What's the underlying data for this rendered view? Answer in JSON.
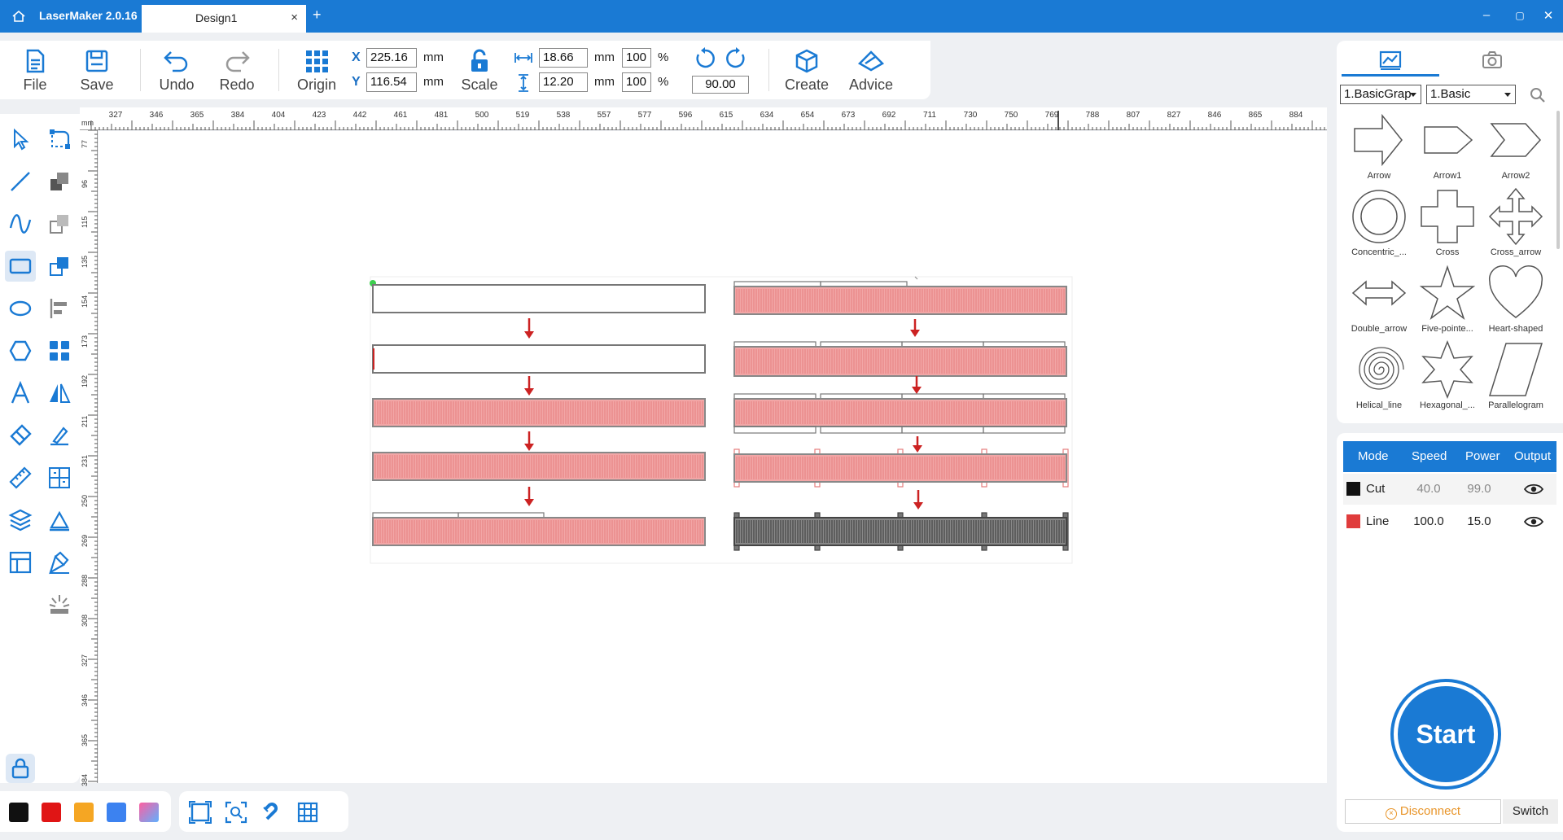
{
  "titlebar": {
    "app_title": "LaserMaker 2.0.16",
    "tab_title": "Design1",
    "tab_close": "×",
    "tab_add": "+",
    "minimize": "–",
    "maximize": "▢",
    "close": "✕"
  },
  "toolbar": {
    "file_label": "File",
    "save_label": "Save",
    "undo_label": "Undo",
    "redo_label": "Redo",
    "origin_label": "Origin",
    "x_label": "X",
    "y_label": "Y",
    "x_value": "225.16",
    "y_value": "116.54",
    "unit_mm": "mm",
    "scale_label": "Scale",
    "width_value": "18.66",
    "height_value": "12.20",
    "width_percent": "100",
    "height_percent": "100",
    "percent_sign": "%",
    "rotation_value": "90.00",
    "create_label": "Create",
    "advice_label": "Advice"
  },
  "ruler": {
    "unit": "mm",
    "top_ticks": [
      "327",
      "346",
      "365",
      "384",
      "404",
      "423",
      "442",
      "461",
      "481",
      "500",
      "519",
      "538",
      "557",
      "577",
      "596",
      "615",
      "634",
      "654",
      "673",
      "692",
      "711",
      "730",
      "750",
      "769",
      "788",
      "807",
      "827",
      "846",
      "865",
      "884"
    ],
    "left_ticks": [
      "77",
      "96",
      "115",
      "135",
      "154",
      "173",
      "192",
      "211",
      "231",
      "250",
      "269",
      "288",
      "308",
      "327",
      "346",
      "365",
      "384"
    ]
  },
  "shape_library": {
    "category_select": "1.BasicGrap",
    "subcategory_select": "1.Basic",
    "shapes": [
      {
        "name": "Arrow",
        "icon": "arrow-icon"
      },
      {
        "name": "Arrow1",
        "icon": "arrow1-icon"
      },
      {
        "name": "Arrow2",
        "icon": "arrow2-icon"
      },
      {
        "name": "Concentric_...",
        "icon": "concentric-circle-icon"
      },
      {
        "name": "Cross",
        "icon": "cross-icon"
      },
      {
        "name": "Cross_arrow",
        "icon": "cross-arrow-icon"
      },
      {
        "name": "Double_arrow",
        "icon": "double-arrow-icon"
      },
      {
        "name": "Five-pointe...",
        "icon": "five-pointed-star-icon"
      },
      {
        "name": "Heart-shaped",
        "icon": "heart-icon"
      },
      {
        "name": "Helical_line",
        "icon": "helical-line-icon"
      },
      {
        "name": "Hexagonal_...",
        "icon": "hexagonal-star-icon"
      },
      {
        "name": "Parallelogram",
        "icon": "parallelogram-icon"
      }
    ]
  },
  "layers": {
    "headers": {
      "mode": "Mode",
      "speed": "Speed",
      "power": "Power",
      "output": "Output"
    },
    "rows": [
      {
        "mode": "Cut",
        "speed": "40.0",
        "power": "99.0",
        "color": "#111111"
      },
      {
        "mode": "Line",
        "speed": "100.0",
        "power": "15.0",
        "color": "#e03c3c"
      }
    ]
  },
  "actions": {
    "start_label": "Start",
    "disconnect_label": "Disconnect",
    "switch_label": "Switch"
  },
  "palette": [
    "#111111",
    "#e01515",
    "#f5a623",
    "#3c82f0",
    "gradient"
  ],
  "colors": {
    "accent": "#1a7ad4",
    "fill_pink": "#f2a6a6",
    "line_red": "#cc2222"
  }
}
